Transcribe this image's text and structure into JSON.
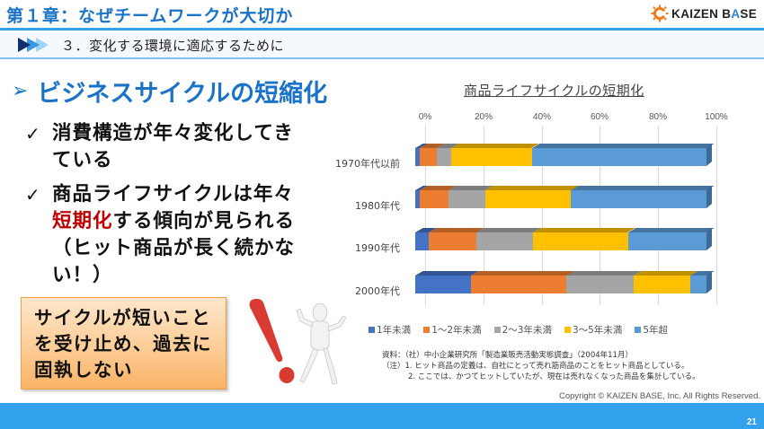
{
  "header": {
    "chapter_title": "第１章：なぜチームワークが大切か",
    "logo_text_pre": "KAIZEN B",
    "logo_text_accent": "A",
    "logo_text_post": "SE",
    "section_title": "３．変化する環境に適応するために"
  },
  "main": {
    "heading_arrow": "➢",
    "heading": "ビジネスサイクルの短縮化",
    "bullets": [
      {
        "check": "✓",
        "text": "消費構造が年々変化してきている"
      },
      {
        "check": "✓",
        "text_pre": "商品ライフサイクルは年々",
        "text_highlight": "短期化",
        "text_post": "する傾向が見られる（ヒット商品が長く続かない！）"
      }
    ],
    "callout": "サイクルが短いことを受け止め、過去に固執しない"
  },
  "chart_data": {
    "type": "bar",
    "orientation": "horizontal",
    "stacked": "percent",
    "title": "商品ライフサイクルの短期化",
    "xlabel": "",
    "ylabel": "",
    "x_ticks": [
      "0%",
      "20%",
      "40%",
      "60%",
      "80%",
      "100%"
    ],
    "xlim": [
      0,
      100
    ],
    "grid": true,
    "legend_position": "bottom",
    "categories": [
      "1970年代以前",
      "1980年代",
      "1990年代",
      "2000年代"
    ],
    "series": [
      {
        "name": "1年未満",
        "color": "#4472c4",
        "values": [
          1.5,
          1.5,
          4.5,
          19
        ]
      },
      {
        "name": "1～2年未満",
        "color": "#ed7d31",
        "values": [
          6,
          10,
          16.5,
          33
        ]
      },
      {
        "name": "2～3年未満",
        "color": "#a5a5a5",
        "values": [
          5,
          12.5,
          19.5,
          23
        ]
      },
      {
        "name": "3～5年未満",
        "color": "#ffc000",
        "values": [
          27.5,
          29.5,
          32.5,
          19.5
        ]
      },
      {
        "name": "5年超",
        "color": "#5b9bd5",
        "values": [
          60,
          46.5,
          27,
          5.5
        ]
      }
    ]
  },
  "chart_notes": {
    "source": "資料：（社）中小企業研究所「製造業販売活動実態調査」（2004年11月）",
    "note1": "（注）1. ヒット商品の定義は、自社にとって売れ筋商品のことをヒット商品としている。",
    "note2": "2. ここでは、かつてヒットしていたが、現在は売れなくなった商品を集計している。"
  },
  "footer": {
    "copyright": "Copyright ©  KAIZEN BASE, Inc.  All Rights Reserved.",
    "page_number": "21"
  }
}
